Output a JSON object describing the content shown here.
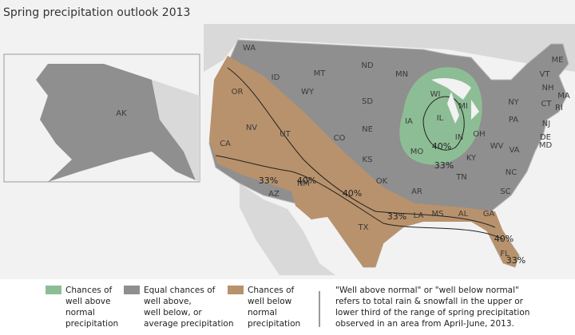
{
  "title": "Spring precipitation outlook 2013",
  "states": [
    "WA",
    "OR",
    "CA",
    "ID",
    "NV",
    "MT",
    "WY",
    "UT",
    "AZ",
    "CO",
    "NM",
    "ND",
    "SD",
    "NE",
    "KS",
    "OK",
    "TX",
    "MN",
    "IA",
    "MO",
    "AR",
    "LA",
    "WI",
    "IL",
    "MI",
    "IN",
    "OH",
    "KY",
    "TN",
    "MS",
    "AL",
    "GA",
    "FL",
    "SC",
    "NC",
    "VA",
    "WV",
    "PA",
    "NY",
    "VT",
    "NH",
    "ME",
    "MA",
    "CT",
    "RI",
    "NJ",
    "DE",
    "MD",
    "AK"
  ],
  "contours": [
    "33%",
    "40%",
    "40%",
    "33%",
    "40%",
    "33%",
    "40%",
    "33%"
  ],
  "legend": [
    {
      "lines": [
        "Chances of",
        "well above",
        "normal",
        "precipitation"
      ]
    },
    {
      "lines": [
        "Equal chances of",
        "well above,",
        "well below, or",
        "average precipitation"
      ]
    },
    {
      "lines": [
        "Chances of",
        "well below",
        "normal",
        "precipitation"
      ]
    }
  ],
  "note": [
    "\"Well above normal\" or \"well below normal\"",
    "refers to total rain & snowfall in the upper or",
    "lower third of the range of spring precipitation",
    "observed in an area from April-June, 2013."
  ]
}
